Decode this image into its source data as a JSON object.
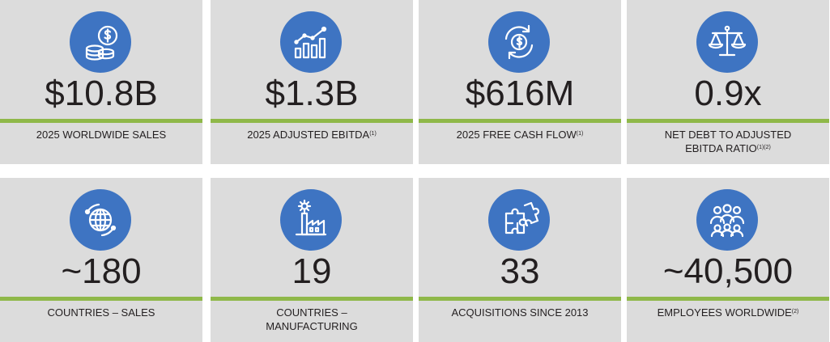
{
  "colors": {
    "card_bg": "#dcdcdc",
    "icon_circle": "#3e74c2",
    "accent_bar": "#8fb849",
    "text": "#231f20"
  },
  "cards": [
    {
      "icon": "coins-dollar-icon",
      "value": "$10.8B",
      "label": "2025 WORLDWIDE SALES",
      "label2": "",
      "sup": ""
    },
    {
      "icon": "growth-chart-icon",
      "value": "$1.3B",
      "label": "2025 ADJUSTED EBITDA",
      "label2": "",
      "sup": "(1)"
    },
    {
      "icon": "cash-cycle-icon",
      "value": "$616M",
      "label": "2025 FREE CASH FLOW",
      "label2": "",
      "sup": "(1)"
    },
    {
      "icon": "balance-scale-icon",
      "value": "0.9x",
      "label": "NET DEBT TO ADJUSTED",
      "label2": "EBITDA RATIO",
      "sup": "(1)(2)"
    },
    {
      "icon": "globe-icon",
      "value": "~180",
      "label": "COUNTRIES – SALES",
      "label2": "",
      "sup": ""
    },
    {
      "icon": "factory-icon",
      "value": "19",
      "label": "COUNTRIES –",
      "label2": "MANUFACTURING",
      "sup": ""
    },
    {
      "icon": "puzzle-icon",
      "value": "33",
      "label": "ACQUISITIONS SINCE 2013",
      "label2": "",
      "sup": ""
    },
    {
      "icon": "people-group-icon",
      "value": "~40,500",
      "label": "EMPLOYEES WORLDWIDE",
      "label2": "",
      "sup": "(2)"
    }
  ]
}
